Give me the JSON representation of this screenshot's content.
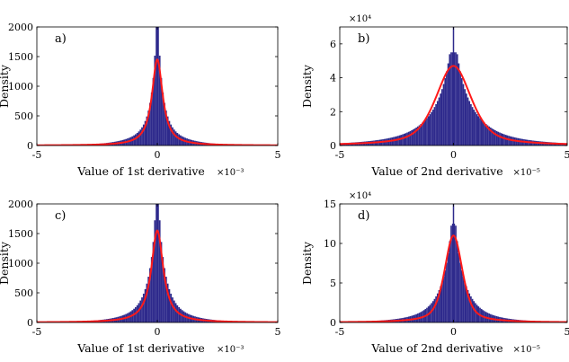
{
  "figure": {
    "background": "#ffffff"
  },
  "chart_data": [
    {
      "id": "a",
      "type": "bar",
      "panel_label": "a)",
      "xlabel": "Value of 1st derivative",
      "x_multiplier": "×10⁻³",
      "ylabel": "Density",
      "y_multiplier": "",
      "xlim": [
        -5,
        5
      ],
      "ylim": [
        0,
        2000
      ],
      "xticks": [
        "-5",
        "0",
        "5"
      ],
      "yticks": [
        "0",
        "500",
        "1000",
        "1500",
        "2000"
      ],
      "xtick_values": [
        -5,
        0,
        5
      ],
      "ytick_values": [
        0,
        500,
        1000,
        1500,
        2000
      ],
      "histogram": {
        "color": "#2e2a8c",
        "peak": 2000,
        "center_width": 0.22,
        "tail_width": 0.9
      },
      "fit_curve": {
        "color": "#ff1a1a",
        "model": "lorentzian",
        "center": 0,
        "peak": 1450,
        "half_width": 0.27
      },
      "grid": false
    },
    {
      "id": "b",
      "type": "bar",
      "panel_label": "b)",
      "xlabel": "Value of 2nd derivative",
      "x_multiplier": "×10⁻⁵",
      "ylabel": "Density",
      "y_multiplier": "×10⁴",
      "xlim": [
        -5,
        5
      ],
      "ylim": [
        0,
        7
      ],
      "xticks": [
        "-5",
        "0",
        "5"
      ],
      "yticks": [
        "0",
        "2",
        "4",
        "6"
      ],
      "xtick_values": [
        -5,
        0,
        5
      ],
      "ytick_values": [
        0,
        2,
        4,
        6
      ],
      "histogram": {
        "color": "#2e2a8c",
        "peak": 5.5,
        "center_width": 0.75,
        "tail_width": 2.2
      },
      "fit_curve": {
        "color": "#ff1a1a",
        "model": "voigt",
        "center": 0,
        "peak": 4.7,
        "half_width": 0.95
      },
      "grid": false
    },
    {
      "id": "c",
      "type": "bar",
      "panel_label": "c)",
      "xlabel": "Value of 1st derivative",
      "x_multiplier": "×10⁻³",
      "ylabel": "Density",
      "y_multiplier": "",
      "xlim": [
        -5,
        5
      ],
      "ylim": [
        0,
        2000
      ],
      "xticks": [
        "-5",
        "0",
        "5"
      ],
      "yticks": [
        "0",
        "500",
        "1000",
        "1500",
        "2000"
      ],
      "xtick_values": [
        -5,
        0,
        5
      ],
      "ytick_values": [
        0,
        500,
        1000,
        1500,
        2000
      ],
      "histogram": {
        "color": "#2e2a8c",
        "peak": 2000,
        "center_width": 0.3,
        "tail_width": 1.0
      },
      "fit_curve": {
        "color": "#ff1a1a",
        "model": "lorentzian",
        "center": 0,
        "peak": 1550,
        "half_width": 0.3
      },
      "grid": false
    },
    {
      "id": "d",
      "type": "bar",
      "panel_label": "d)",
      "xlabel": "Value of 2nd derivative",
      "x_multiplier": "×10⁻⁵",
      "ylabel": "Density",
      "y_multiplier": "×10⁴",
      "xlim": [
        -5,
        5
      ],
      "ylim": [
        0,
        15
      ],
      "xticks": [
        "-5",
        "0",
        "5"
      ],
      "yticks": [
        "0",
        "5",
        "10",
        "15"
      ],
      "xtick_values": [
        -5,
        0,
        5
      ],
      "ytick_values": [
        0,
        5,
        10,
        15
      ],
      "histogram": {
        "color": "#2e2a8c",
        "peak": 12.5,
        "center_width": 0.45,
        "tail_width": 1.3
      },
      "fit_curve": {
        "color": "#ff1a1a",
        "model": "voigt",
        "center": 0,
        "peak": 11,
        "half_width": 0.48
      },
      "grid": false
    }
  ]
}
